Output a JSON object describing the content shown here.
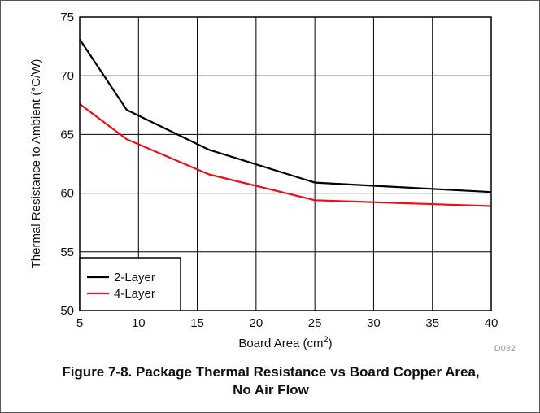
{
  "chart_data": {
    "type": "line",
    "xlabel": "Board Area (cm",
    "xlabel_superscript": "2",
    "xlabel_suffix": ")",
    "ylabel": "Thermal Resistance to Ambient (°C/W)",
    "xlim": [
      5,
      40
    ],
    "ylim": [
      50,
      75
    ],
    "xticks": [
      5,
      10,
      15,
      20,
      25,
      30,
      35,
      40
    ],
    "yticks": [
      50,
      55,
      60,
      65,
      70,
      75
    ],
    "grid": true,
    "legend_position": "bottom-left",
    "series": [
      {
        "name": "2-Layer",
        "color": "#000000",
        "x": [
          5,
          9,
          16,
          25,
          40
        ],
        "y": [
          73.1,
          67.1,
          63.7,
          60.9,
          60.1
        ]
      },
      {
        "name": "4-Layer",
        "color": "#e8101a",
        "x": [
          5,
          9,
          16,
          25,
          40
        ],
        "y": [
          67.6,
          64.6,
          61.6,
          59.4,
          58.9
        ]
      }
    ],
    "watermark": "D032"
  },
  "caption": {
    "line1": "Figure 7-8. Package Thermal Resistance vs Board Copper Area,",
    "line2": "No Air Flow"
  }
}
